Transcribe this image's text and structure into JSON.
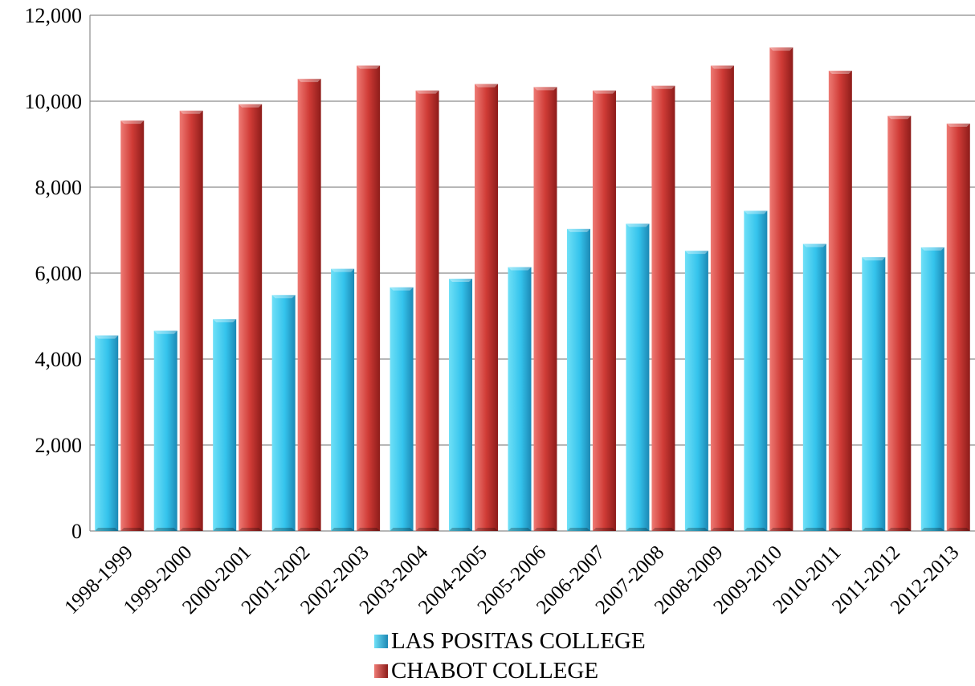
{
  "chart_data": {
    "type": "bar",
    "title": "",
    "xlabel": "",
    "ylabel": "",
    "ylim": [
      0,
      12000
    ],
    "yticks": [
      0,
      2000,
      4000,
      6000,
      8000,
      10000,
      12000
    ],
    "ytick_labels": [
      "0",
      "2,000",
      "4,000",
      "6,000",
      "8,000",
      "10,000",
      "12,000"
    ],
    "grid": true,
    "legend_position": "bottom",
    "categories": [
      "1998-1999",
      "1999-2000",
      "2000-2001",
      "2001-2002",
      "2002-2003",
      "2003-2004",
      "2004-2005",
      "2005-2006",
      "2006-2007",
      "2007-2008",
      "2008-2009",
      "2009-2010",
      "2010-2011",
      "2011-2012",
      "2012-2013"
    ],
    "series": [
      {
        "name": "LAS POSITAS COLLEGE",
        "color": "#29b6e6",
        "values": [
          4550,
          4660,
          4930,
          5490,
          6100,
          5670,
          5870,
          6140,
          7030,
          7150,
          6520,
          7450,
          6680,
          6370,
          6600
        ]
      },
      {
        "name": "CHABOT COLLEGE",
        "color": "#c0302e",
        "values": [
          9550,
          9780,
          9930,
          10520,
          10830,
          10250,
          10400,
          10330,
          10250,
          10360,
          10830,
          11250,
          10710,
          9660,
          9480
        ]
      }
    ]
  }
}
